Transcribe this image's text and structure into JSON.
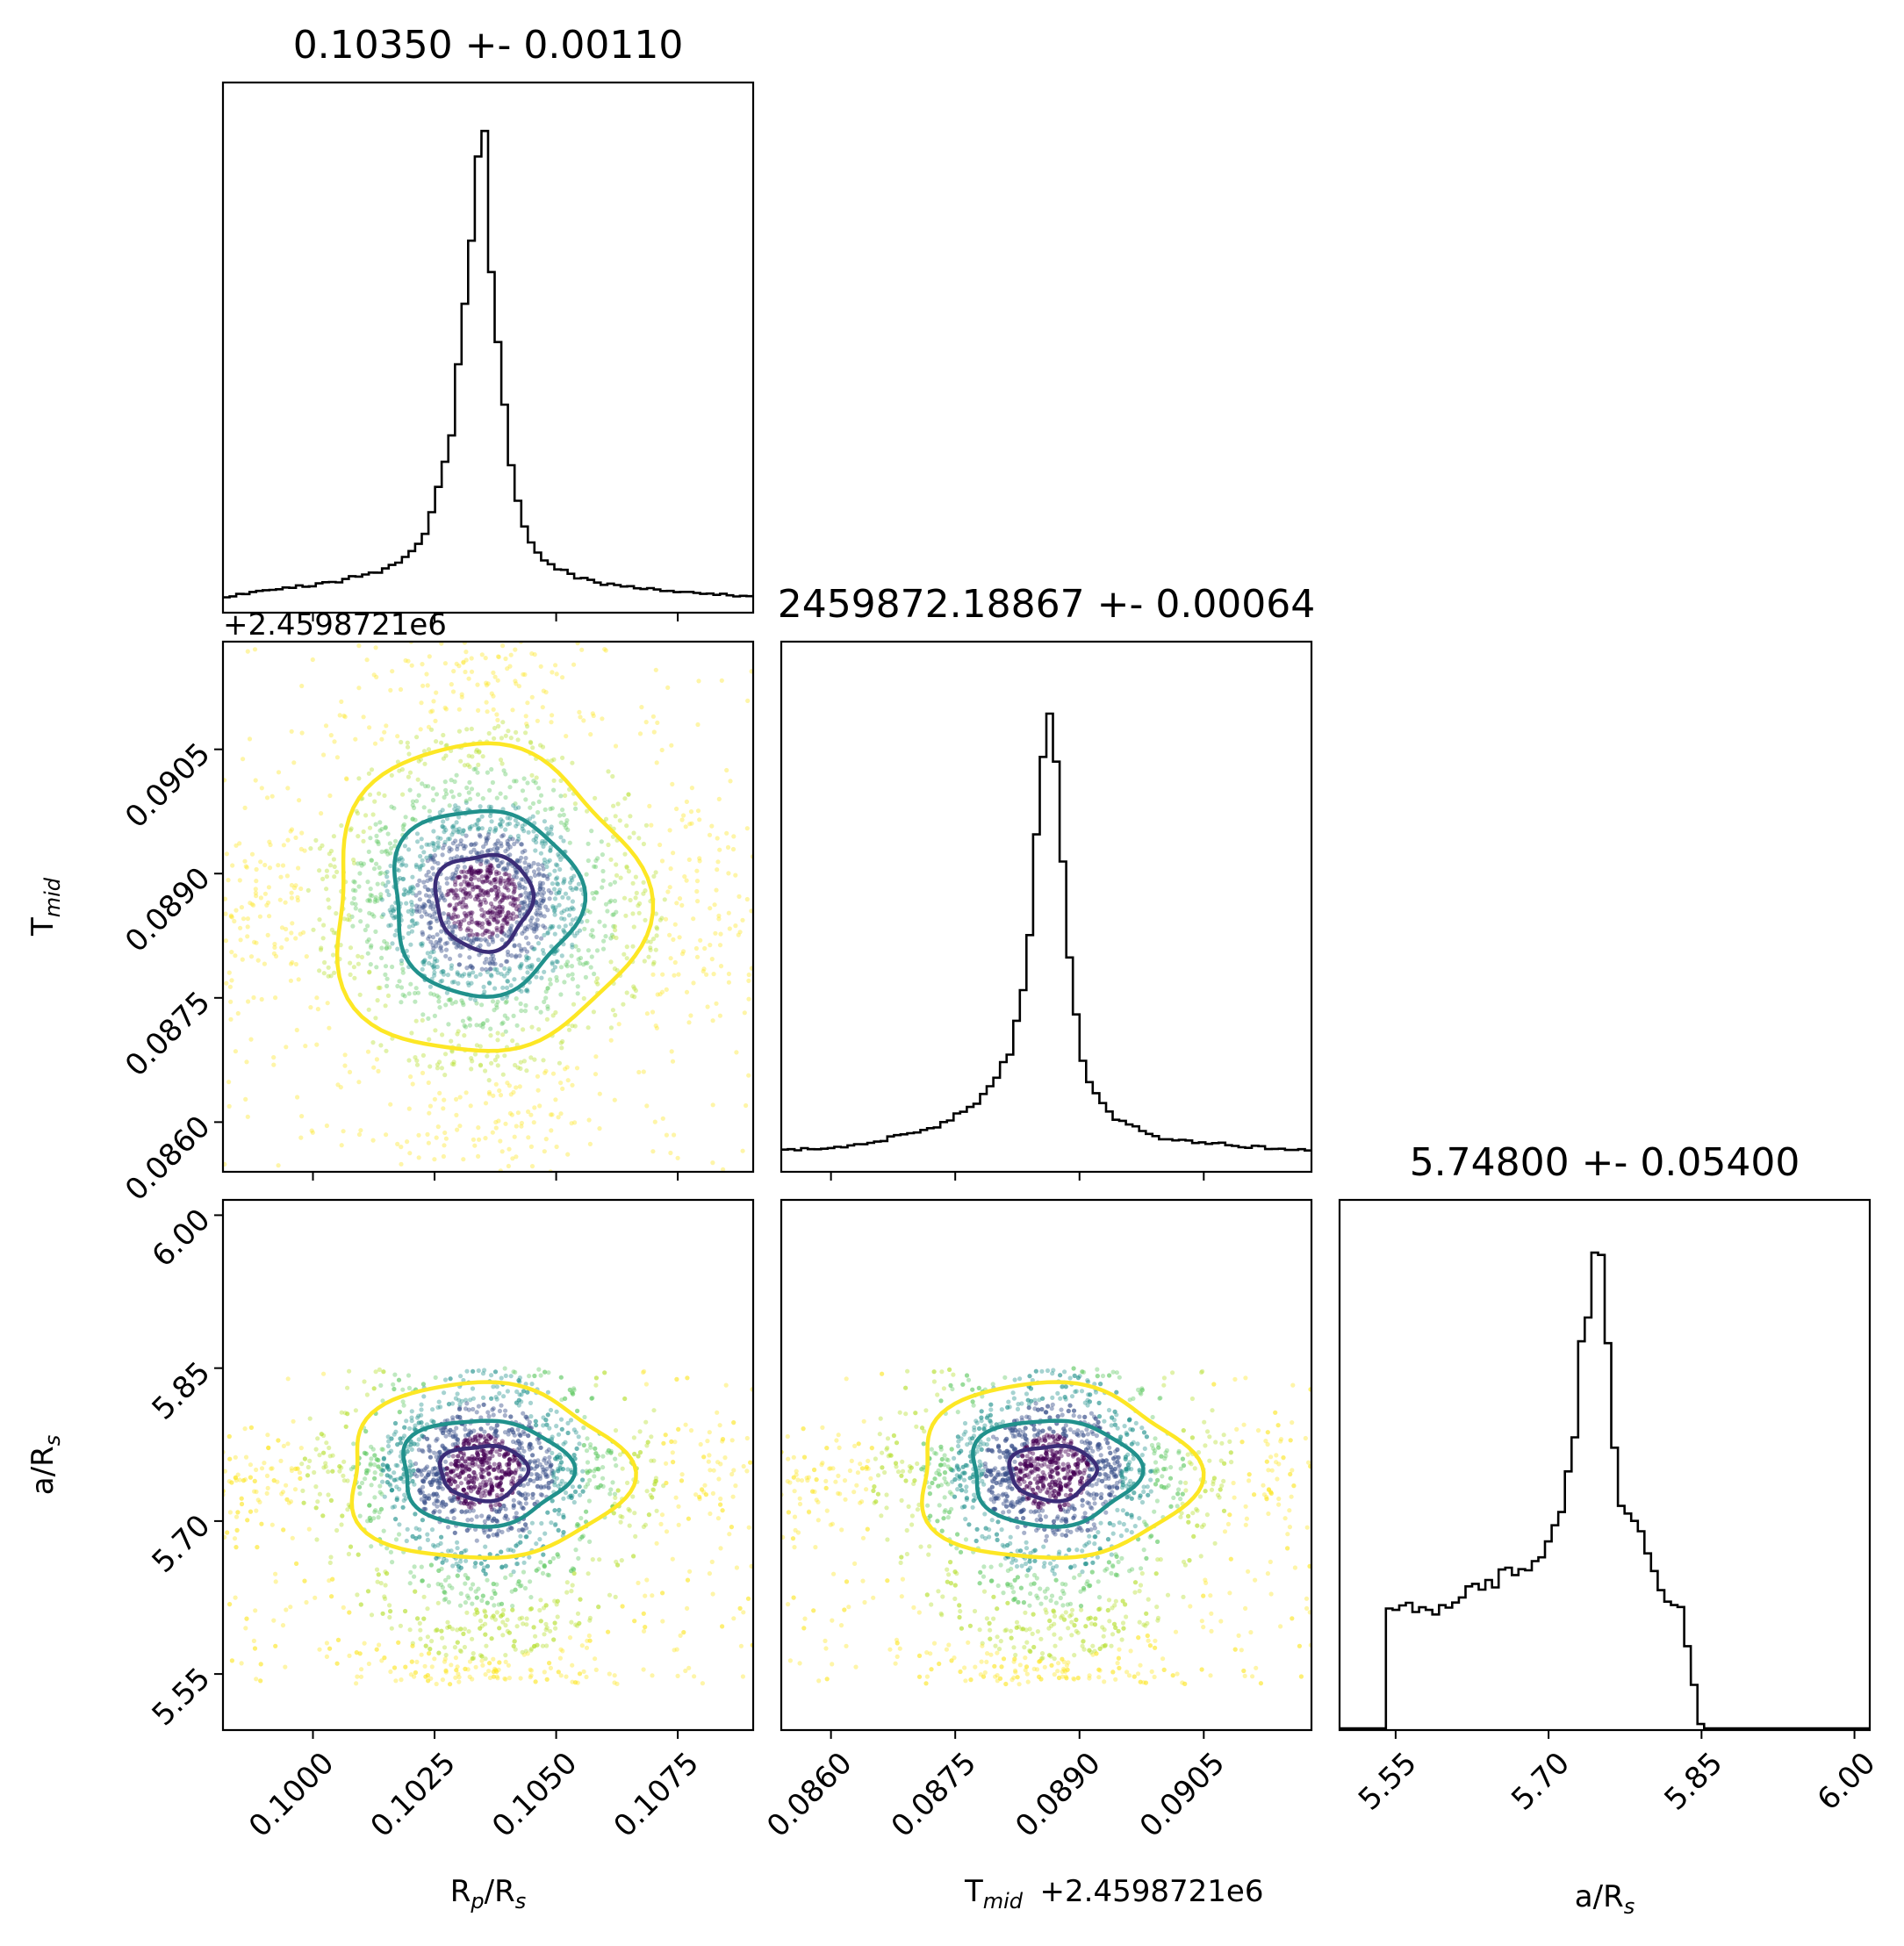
{
  "chart_data": {
    "type": "corner",
    "parameters": [
      {
        "key": "rp",
        "label_main": "R",
        "label_sub1": "p",
        "label_mid": "/R",
        "label_sub2": "s",
        "title": "0.10350 +- 0.00110",
        "range": [
          0.09815,
          0.10905
        ],
        "ticks": [
          0.1,
          0.1025,
          0.105,
          0.1075
        ],
        "tick_labels": [
          "0.1000",
          "0.1025",
          "0.1050",
          "0.1075"
        ]
      },
      {
        "key": "tmid",
        "label_main": "T",
        "label_sub1": "mid",
        "label_mid": "",
        "label_sub2": "",
        "title": "2459872.18867 +- 0.00064",
        "offset_label": "+2.4598721e6",
        "range": [
          0.0854,
          0.0918
        ],
        "ticks": [
          0.086,
          0.0875,
          0.089,
          0.0905
        ],
        "tick_labels": [
          "0.0860",
          "0.0875",
          "0.0890",
          "0.0905"
        ]
      },
      {
        "key": "ars",
        "label_main": "a/R",
        "label_sub1": "s",
        "label_mid": "",
        "label_sub2": "",
        "title": "5.74800 +- 0.05400",
        "range": [
          5.495,
          6.015
        ],
        "ticks": [
          5.55,
          5.7,
          5.85,
          6.0
        ],
        "tick_labels": [
          "5.55",
          "5.70",
          "5.85",
          "6.00"
        ]
      }
    ],
    "posterior": {
      "rp": {
        "median": 0.1035,
        "sigma": 0.0011,
        "hist_x": [
          0.0982,
          0.0996,
          0.1005,
          0.1012,
          0.1018,
          0.1022,
          0.1025,
          0.1027,
          0.1029,
          0.1031,
          0.1033,
          0.1034,
          0.1035,
          0.1036,
          0.1037,
          0.1039,
          0.1041,
          0.1043,
          0.1045,
          0.1048,
          0.1052,
          0.1058,
          0.1066,
          0.1076,
          0.109
        ],
        "hist_y": [
          0.03,
          0.05,
          0.06,
          0.08,
          0.1,
          0.14,
          0.22,
          0.3,
          0.42,
          0.6,
          0.83,
          0.97,
          1.0,
          0.88,
          0.68,
          0.46,
          0.3,
          0.2,
          0.14,
          0.1,
          0.08,
          0.06,
          0.05,
          0.04,
          0.03
        ]
      },
      "tmid": {
        "median": 0.08867,
        "sigma": 0.00064,
        "hist_x": [
          0.0854,
          0.0862,
          0.0868,
          0.0874,
          0.0878,
          0.0881,
          0.0883,
          0.0884,
          0.0885,
          0.0886,
          0.08865,
          0.0887,
          0.0888,
          0.0889,
          0.089,
          0.0892,
          0.0895,
          0.0899,
          0.0904,
          0.091,
          0.0918
        ],
        "hist_y": [
          0.04,
          0.05,
          0.07,
          0.1,
          0.14,
          0.22,
          0.34,
          0.5,
          0.74,
          0.92,
          1.0,
          0.9,
          0.66,
          0.42,
          0.25,
          0.16,
          0.1,
          0.07,
          0.06,
          0.05,
          0.04
        ]
      },
      "ars": {
        "median": 5.748,
        "sigma": 0.054,
        "prior_range": [
          5.54,
          5.85
        ],
        "hist_x": [
          5.54,
          5.56,
          5.58,
          5.61,
          5.64,
          5.67,
          5.69,
          5.71,
          5.72,
          5.73,
          5.74,
          5.75,
          5.76,
          5.77,
          5.79,
          5.81,
          5.83,
          5.85
        ],
        "hist_y": [
          0.24,
          0.26,
          0.24,
          0.27,
          0.3,
          0.34,
          0.36,
          0.44,
          0.52,
          0.72,
          0.93,
          1.0,
          0.72,
          0.5,
          0.4,
          0.3,
          0.24,
          0.0
        ]
      }
    },
    "contour_levels": [
      {
        "name": "inner",
        "color": "#3b2d78"
      },
      {
        "name": "middle",
        "color": "#21918c"
      },
      {
        "name": "outer",
        "color": "#fde725"
      }
    ],
    "scatter_colors": [
      "#fde725",
      "#b5de2b",
      "#5ec962",
      "#21918c",
      "#3b528b",
      "#440154"
    ],
    "hist_color": "#000000",
    "background": "#ffffff"
  }
}
